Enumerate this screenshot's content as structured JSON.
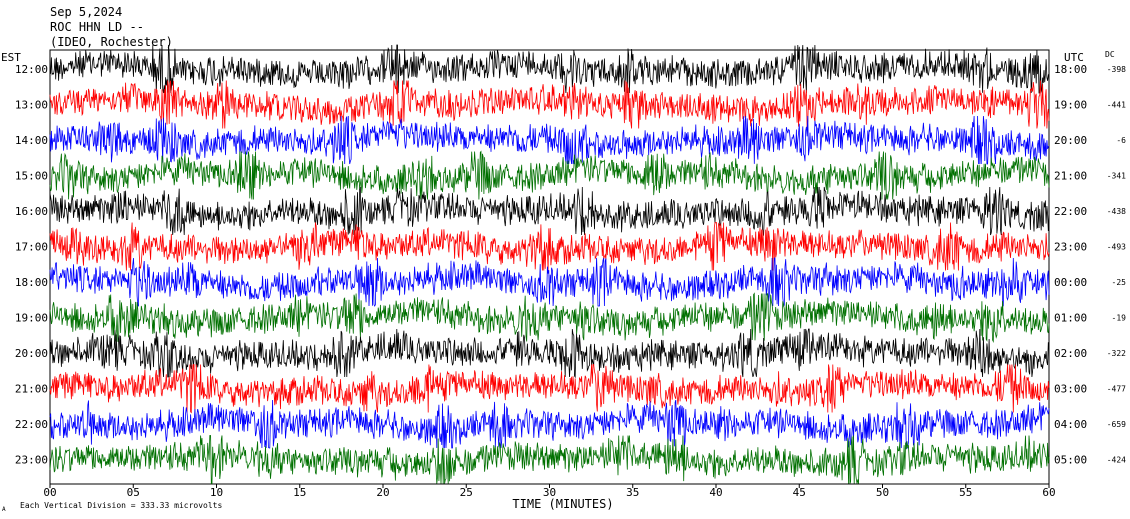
{
  "header": {
    "date": "Sep 5,2024",
    "station": "ROC HHN LD --",
    "location": "(IDEO, Rochester)"
  },
  "left_label": "EST",
  "right_label": "UTC",
  "dc_label": "DC",
  "footer": {
    "scale_note": "Each Vertical Division =  333.33 microvolts",
    "corner_mark": "A"
  },
  "chart_data": {
    "type": "line",
    "xlabel": "TIME (MINUTES)",
    "x_ticks": [
      "00",
      "05",
      "10",
      "15",
      "20",
      "25",
      "30",
      "35",
      "40",
      "45",
      "50",
      "55",
      "60"
    ],
    "xlim": [
      0,
      60
    ],
    "trace_colors": [
      "#000000",
      "#ff0000",
      "#0000ff",
      "#007000"
    ],
    "rows": [
      {
        "est": "12:00",
        "utc": "18:00",
        "dc": "-398"
      },
      {
        "est": "13:00",
        "utc": "19:00",
        "dc": "-441"
      },
      {
        "est": "14:00",
        "utc": "20:00",
        "dc": "-6"
      },
      {
        "est": "15:00",
        "utc": "21:00",
        "dc": "-341"
      },
      {
        "est": "16:00",
        "utc": "22:00",
        "dc": "-438"
      },
      {
        "est": "17:00",
        "utc": "23:00",
        "dc": "-493"
      },
      {
        "est": "18:00",
        "utc": "00:00",
        "dc": "-25"
      },
      {
        "est": "19:00",
        "utc": "01:00",
        "dc": "-19"
      },
      {
        "est": "20:00",
        "utc": "02:00",
        "dc": "-322"
      },
      {
        "est": "21:00",
        "utc": "03:00",
        "dc": "-477"
      },
      {
        "est": "22:00",
        "utc": "04:00",
        "dc": "-659"
      },
      {
        "est": "23:00",
        "utc": "05:00",
        "dc": "-424"
      }
    ]
  }
}
